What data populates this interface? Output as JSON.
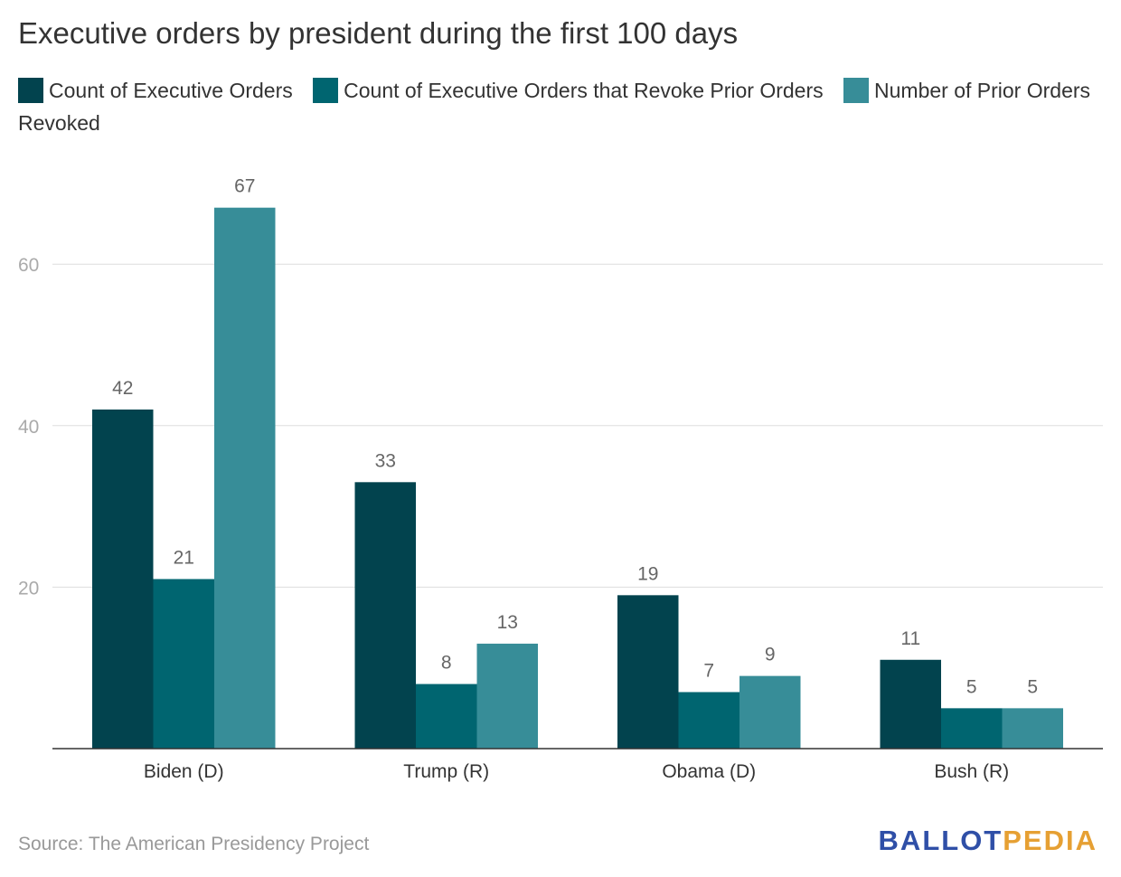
{
  "chart_data": {
    "type": "bar",
    "title": "Executive orders by president during the first 100 days",
    "categories": [
      "Biden (D)",
      "Trump (R)",
      "Obama (D)",
      "Bush (R)"
    ],
    "series": [
      {
        "name": "Count of Executive Orders",
        "values": [
          42,
          33,
          19,
          11
        ],
        "color": "#02434e"
      },
      {
        "name": "Count of Executive Orders that Revoke Prior Orders",
        "values": [
          21,
          8,
          7,
          5
        ],
        "color": "#006570"
      },
      {
        "name": "Number of Prior Orders Revoked",
        "values": [
          67,
          13,
          9,
          5
        ],
        "color": "#378d98"
      }
    ],
    "y_ticks": [
      "20",
      "40",
      "60"
    ],
    "ylim": [
      0,
      75
    ],
    "grid": true,
    "legend_position": "top",
    "data_labels": true
  },
  "source": "Source: The American Presidency Project",
  "logo": {
    "part1": "BALLOT",
    "part2": "PEDIA",
    "color1": "#2f4fa7",
    "color2": "#e6a033"
  }
}
